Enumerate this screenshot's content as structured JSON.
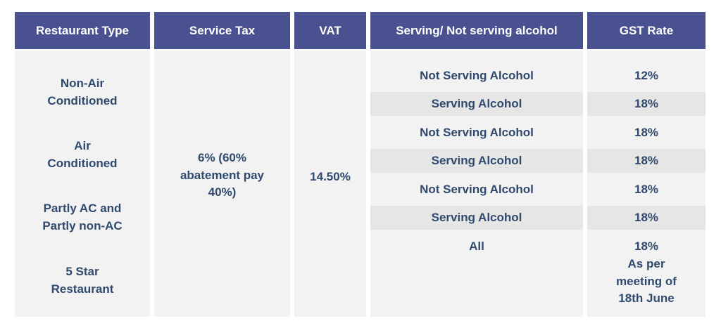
{
  "headers": [
    "Restaurant Type",
    "Service Tax",
    "VAT",
    "Serving/ Not serving alcohol",
    "GST Rate"
  ],
  "colors": {
    "header_bg": "#4a5190",
    "header_text": "#ffffff",
    "body_text": "#2f4a6e",
    "cell_bg": "#f2f2f2",
    "alt_row_bg": "#e6e6e6"
  },
  "restaurant_types": [
    "Non-Air Conditioned",
    "Air Conditioned",
    "Partly AC and Partly non-AC",
    "5 Star Restaurant"
  ],
  "service_tax": "6% (60% abatement pay 40%)",
  "vat": "14.50%",
  "rows": [
    {
      "alcohol": "Not Serving Alcohol",
      "gst": "12%"
    },
    {
      "alcohol": "Serving Alcohol",
      "gst": "18%"
    },
    {
      "alcohol": "Not Serving Alcohol",
      "gst": "18%"
    },
    {
      "alcohol": "Serving Alcohol",
      "gst": "18%"
    },
    {
      "alcohol": "Not Serving Alcohol",
      "gst": "18%"
    },
    {
      "alcohol": "Serving Alcohol",
      "gst": "18%"
    },
    {
      "alcohol": "All",
      "gst": "18%",
      "gst_note": "As per meeting of 18th June"
    }
  ]
}
